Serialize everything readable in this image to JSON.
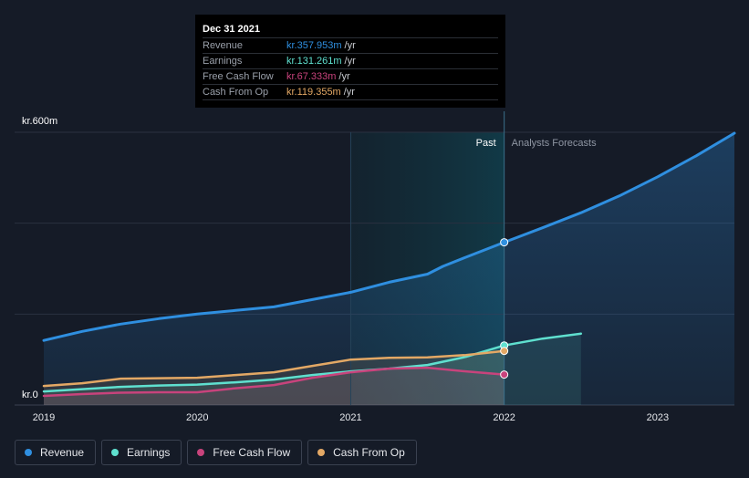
{
  "colors": {
    "revenue": "#2f8fe0",
    "earnings": "#5fe0cf",
    "free_cash_flow": "#c8437c",
    "cash_from_op": "#e3a865",
    "background": "#151b27"
  },
  "tooltip": {
    "date": "Dec 31 2021",
    "rows": [
      {
        "name": "Revenue",
        "value": "kr.357.953m",
        "unit": "/yr",
        "color": "#2f8fe0"
      },
      {
        "name": "Earnings",
        "value": "kr.131.261m",
        "unit": "/yr",
        "color": "#5fe0cf"
      },
      {
        "name": "Free Cash Flow",
        "value": "kr.67.333m",
        "unit": "/yr",
        "color": "#c8437c"
      },
      {
        "name": "Cash From Op",
        "value": "kr.119.355m",
        "unit": "/yr",
        "color": "#e3a865"
      }
    ]
  },
  "zones": {
    "past": "Past",
    "forecast": "Analysts Forecasts"
  },
  "legend": [
    {
      "label": "Revenue",
      "color": "#2f8fe0",
      "icon": "revenue-dot-icon"
    },
    {
      "label": "Earnings",
      "color": "#5fe0cf",
      "icon": "earnings-dot-icon"
    },
    {
      "label": "Free Cash Flow",
      "color": "#c8437c",
      "icon": "free-cash-flow-dot-icon"
    },
    {
      "label": "Cash From Op",
      "color": "#e3a865",
      "icon": "cash-from-op-dot-icon"
    }
  ],
  "chart_data": {
    "type": "area",
    "title": "",
    "xlabel": "",
    "ylabel": "",
    "xlim": [
      2019.0,
      2023.5
    ],
    "ylim": [
      0,
      600
    ],
    "y_tick_labels": [
      {
        "value": 600,
        "label": "kr.600m"
      },
      {
        "value": 0,
        "label": "kr.0"
      }
    ],
    "x_tick_labels": [
      {
        "value": 2019,
        "label": "2019"
      },
      {
        "value": 2020,
        "label": "2020"
      },
      {
        "value": 2021,
        "label": "2021"
      },
      {
        "value": 2022,
        "label": "2022"
      },
      {
        "value": 2023,
        "label": "2023"
      }
    ],
    "gridlines_y": [
      200,
      400,
      600
    ],
    "past_range": [
      2021.0,
      2022.0
    ],
    "cursor_x": 2022.0,
    "series": [
      {
        "name": "Revenue",
        "x": [
          2019.0,
          2019.25,
          2019.5,
          2019.75,
          2020.0,
          2020.25,
          2020.5,
          2020.75,
          2021.0,
          2021.25,
          2021.5,
          2021.6,
          2021.75,
          2022.0,
          2022.25,
          2022.5,
          2022.75,
          2023.0,
          2023.25,
          2023.5
        ],
        "values": [
          142,
          162,
          178,
          190,
          200,
          208,
          216,
          232,
          248,
          270,
          288,
          305,
          325,
          358,
          390,
          423,
          460,
          502,
          548,
          598
        ],
        "highlight_index": 13
      },
      {
        "name": "Earnings",
        "x": [
          2019.0,
          2019.25,
          2019.5,
          2019.75,
          2020.0,
          2020.25,
          2020.5,
          2020.75,
          2021.0,
          2021.25,
          2021.5,
          2021.75,
          2022.0,
          2022.25,
          2022.5
        ],
        "values": [
          30,
          35,
          40,
          43,
          45,
          50,
          56,
          66,
          74,
          80,
          88,
          106,
          131,
          146,
          157
        ],
        "highlight_index": 12
      },
      {
        "name": "Free Cash Flow",
        "x": [
          2019.0,
          2019.25,
          2019.5,
          2019.75,
          2020.0,
          2020.25,
          2020.5,
          2020.75,
          2021.0,
          2021.25,
          2021.5,
          2021.75,
          2022.0
        ],
        "values": [
          20,
          24,
          27,
          28,
          28,
          37,
          44,
          60,
          72,
          80,
          82,
          74,
          67
        ],
        "highlight_index": 12
      },
      {
        "name": "Cash From Op",
        "x": [
          2019.0,
          2019.25,
          2019.5,
          2019.75,
          2020.0,
          2020.25,
          2020.5,
          2020.75,
          2021.0,
          2021.25,
          2021.5,
          2021.75,
          2022.0
        ],
        "values": [
          42,
          48,
          58,
          59,
          60,
          66,
          72,
          86,
          100,
          104,
          105,
          110,
          119
        ],
        "highlight_index": 12
      }
    ]
  }
}
